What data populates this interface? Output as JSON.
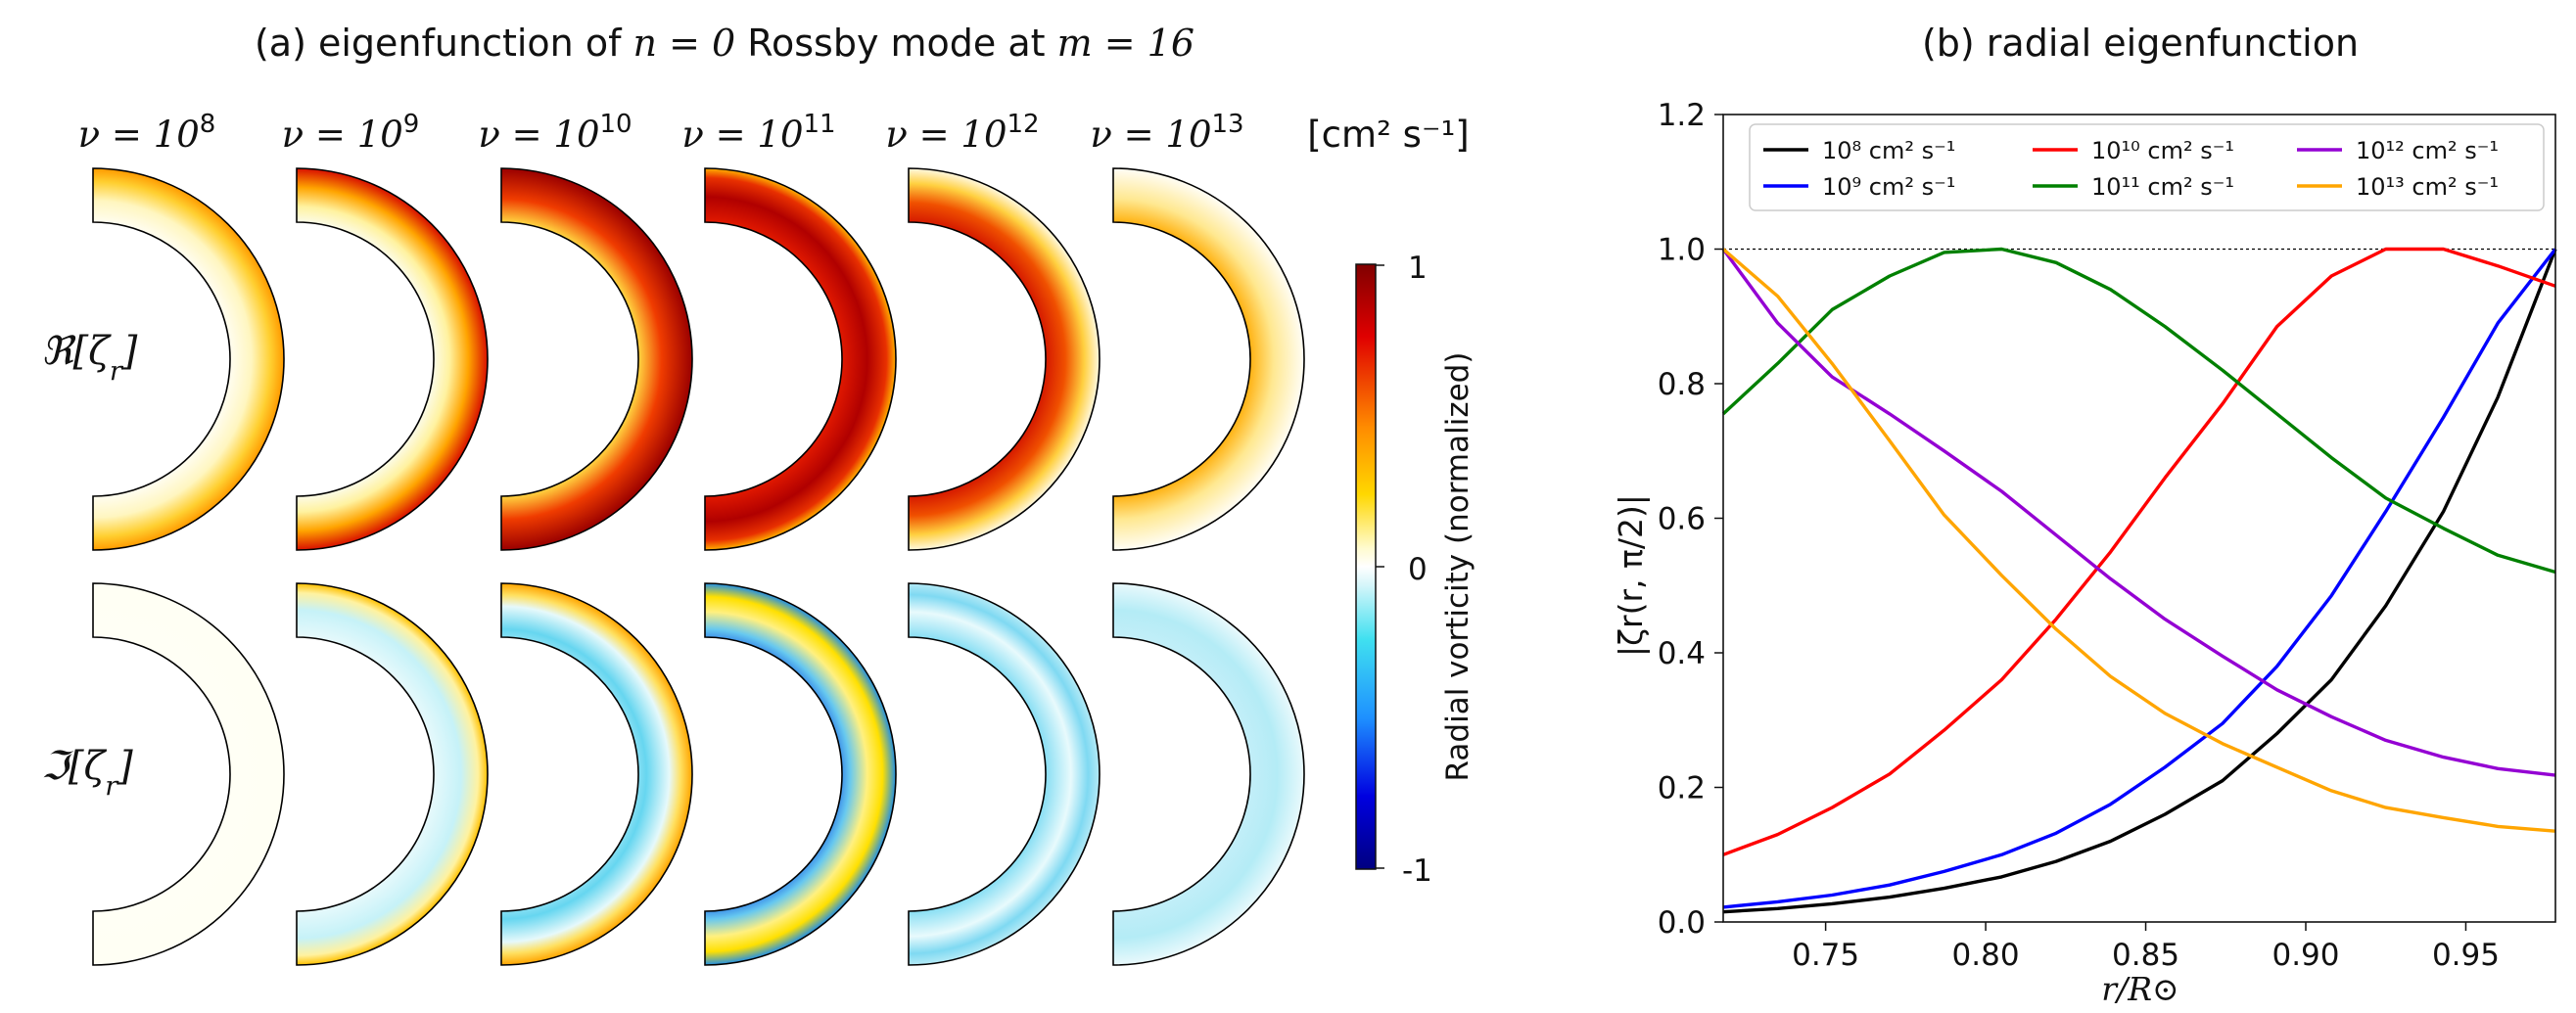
{
  "panel_a": {
    "title_prefix": "(a) eigenfunction of ",
    "title_n": "n = 0",
    "title_mid": " Rossby mode at ",
    "title_m": "m = 16",
    "nu_symbol": "ν = 10",
    "nu_exponents": [
      "8",
      "9",
      "10",
      "11",
      "12",
      "13"
    ],
    "units_label": "[cm² s⁻¹]",
    "row_labels": [
      "ℜ[ζ",
      "ℑ[ζ"
    ],
    "row_label_sub": "r",
    "row_label_close": "]",
    "colorbar": {
      "label": "Radial vorticity (normalized)",
      "ticks": [
        "1",
        "0",
        "-1"
      ]
    }
  },
  "colors": {
    "black": "#000000",
    "blue": "#0000ff",
    "red": "#ff0000",
    "green": "#008000",
    "purple": "#9400d3",
    "orange": "#ffa500",
    "half_disk_edge": "#000000"
  },
  "chart_data": {
    "type": "line",
    "title": "(b) radial eigenfunction",
    "xlabel": "r/R⊙",
    "ylabel": "|ζr(r, π/2)|",
    "xlim": [
      0.718,
      0.978
    ],
    "ylim": [
      0.0,
      1.2
    ],
    "xticks": [
      "0.75",
      "0.80",
      "0.85",
      "0.90",
      "0.95"
    ],
    "xtick_values": [
      0.75,
      0.8,
      0.85,
      0.9,
      0.95
    ],
    "yticks": [
      "0.0",
      "0.2",
      "0.4",
      "0.6",
      "0.8",
      "1.0",
      "1.2"
    ],
    "ytick_values": [
      0.0,
      0.2,
      0.4,
      0.6,
      0.8,
      1.0,
      1.2
    ],
    "reference_line_y": 1.0,
    "x": [
      0.718,
      0.735,
      0.752,
      0.77,
      0.787,
      0.805,
      0.822,
      0.839,
      0.856,
      0.874,
      0.891,
      0.908,
      0.925,
      0.943,
      0.96,
      0.978
    ],
    "series": [
      {
        "name": "10⁸ cm² s⁻¹",
        "color": "#000000",
        "values": [
          0.015,
          0.02,
          0.027,
          0.037,
          0.05,
          0.067,
          0.09,
          0.12,
          0.16,
          0.21,
          0.28,
          0.36,
          0.47,
          0.61,
          0.78,
          1.0
        ]
      },
      {
        "name": "10⁹ cm² s⁻¹",
        "color": "#0000ff",
        "values": [
          0.022,
          0.03,
          0.04,
          0.055,
          0.075,
          0.1,
          0.132,
          0.175,
          0.23,
          0.295,
          0.38,
          0.485,
          0.61,
          0.75,
          0.89,
          1.0
        ]
      },
      {
        "name": "10¹⁰ cm² s⁻¹",
        "color": "#ff0000",
        "values": [
          0.1,
          0.13,
          0.17,
          0.22,
          0.285,
          0.36,
          0.45,
          0.55,
          0.66,
          0.77,
          0.885,
          0.96,
          1.0,
          1.0,
          0.975,
          0.945
        ]
      },
      {
        "name": "10¹¹ cm² s⁻¹",
        "color": "#008000",
        "values": [
          0.755,
          0.83,
          0.91,
          0.96,
          0.995,
          1.0,
          0.98,
          0.94,
          0.885,
          0.82,
          0.755,
          0.69,
          0.63,
          0.585,
          0.545,
          0.52
        ]
      },
      {
        "name": "10¹² cm² s⁻¹",
        "color": "#9400d3",
        "values": [
          1.0,
          0.89,
          0.81,
          0.755,
          0.7,
          0.64,
          0.575,
          0.51,
          0.45,
          0.395,
          0.345,
          0.305,
          0.27,
          0.245,
          0.228,
          0.218
        ]
      },
      {
        "name": "10¹³ cm² s⁻¹",
        "color": "#ffa500",
        "values": [
          1.0,
          0.93,
          0.83,
          0.715,
          0.605,
          0.515,
          0.435,
          0.365,
          0.31,
          0.265,
          0.23,
          0.195,
          0.17,
          0.155,
          0.142,
          0.135
        ]
      }
    ],
    "legend_location": "upper-center"
  }
}
